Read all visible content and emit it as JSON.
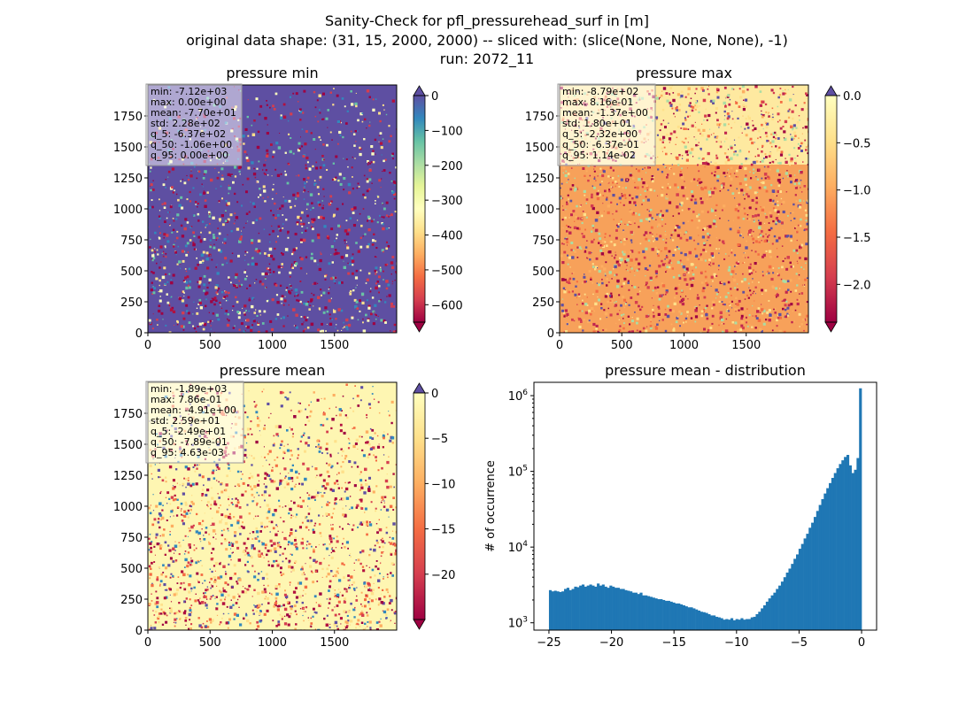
{
  "figure": {
    "title_lines": [
      "Sanity-Check for pfl_pressurehead_surf in [m]",
      "original data shape: (31, 15, 2000, 2000) -- sliced with: (slice(None, None, None), -1)",
      "run: 2072_11"
    ]
  },
  "panels": {
    "min": {
      "title": "pressure min",
      "stats": [
        "min: -7.12e+03",
        "max: 0.00e+00",
        "mean: -7.70e+01",
        "std: 2.28e+02",
        "q_5: -6.37e+02",
        "q_50: -1.06e+00",
        "q_95: 0.00e+00"
      ],
      "colorbar": {
        "range": [
          -650,
          0
        ],
        "ticks": [
          0,
          -100,
          -200,
          -300,
          -400,
          -500,
          -600
        ],
        "tick_labels": [
          "0",
          "−100",
          "−200",
          "−300",
          "−400",
          "−500",
          "−600"
        ]
      }
    },
    "max": {
      "title": "pressure max",
      "stats": [
        "min: -8.79e+02",
        "max: 8.16e-01",
        "mean: -1.37e+00",
        "std: 1.80e+01",
        "q_5: -2.32e+00",
        "q_50: -6.37e-01",
        "q_95: 1.14e-02"
      ],
      "colorbar": {
        "range": [
          -2.4,
          0
        ],
        "ticks": [
          0,
          -0.5,
          -1,
          -1.5,
          -2
        ],
        "tick_labels": [
          "0.0",
          "−0.5",
          "−1.0",
          "−1.5",
          "−2.0"
        ]
      }
    },
    "mean": {
      "title": "pressure mean",
      "stats": [
        "min: -1.89e+03",
        "max: 7.86e-01",
        "mean: -4.91e+00",
        "std: 2.59e+01",
        "q_5: -2.49e+01",
        "q_50: -7.89e-01",
        "q_95: 4.63e-03"
      ],
      "colorbar": {
        "range": [
          -25,
          0
        ],
        "ticks": [
          0,
          -5,
          -10,
          -15,
          -20
        ],
        "tick_labels": [
          "0",
          "−5",
          "−10",
          "−15",
          "−20"
        ]
      }
    }
  },
  "map_axes": {
    "x_ticks": [
      0,
      500,
      1000,
      1500
    ],
    "x_tick_labels": [
      "0",
      "500",
      "1000",
      "1500"
    ],
    "y_ticks": [
      0,
      250,
      500,
      750,
      1000,
      1250,
      1500,
      1750
    ],
    "y_tick_labels": [
      "0",
      "250",
      "500",
      "750",
      "1000",
      "1250",
      "1500",
      "1750"
    ],
    "xlim": [
      0,
      2000
    ],
    "ylim": [
      0,
      2000
    ]
  },
  "colormap": "Spectral",
  "colors": {
    "bar": "#1f77b4",
    "spectral_low": "#9e0142",
    "spectral_mid": "#ffffbf",
    "spectral_high": "#5e4fa2"
  },
  "chart_data": [
    {
      "type": "heatmap",
      "title": "pressure min",
      "xlim": [
        0,
        2000
      ],
      "ylim": [
        0,
        2000
      ],
      "colorbar_range": [
        -650,
        0
      ]
    },
    {
      "type": "heatmap",
      "title": "pressure max",
      "xlim": [
        0,
        2000
      ],
      "ylim": [
        0,
        2000
      ],
      "colorbar_range": [
        -2.4,
        0
      ]
    },
    {
      "type": "heatmap",
      "title": "pressure mean",
      "xlim": [
        0,
        2000
      ],
      "ylim": [
        0,
        2000
      ],
      "colorbar_range": [
        -25,
        0
      ]
    },
    {
      "type": "bar",
      "title": "pressure mean - distribution",
      "xlabel": "",
      "ylabel": "# of occurrence",
      "yscale": "log",
      "xlim": [
        -26.2,
        1.2
      ],
      "ylim": [
        800,
        1500000
      ],
      "x_ticks": [
        -25,
        -20,
        -15,
        -10,
        -5,
        0
      ],
      "x_tick_labels": [
        "−25",
        "−20",
        "−15",
        "−10",
        "−5",
        "0"
      ],
      "y_ticks": [
        1000,
        10000,
        100000,
        1000000
      ],
      "y_tick_labels": [
        "10^3",
        "10^4",
        "10^5",
        "10^6"
      ],
      "bin_range": [
        -25,
        0
      ],
      "counts": [
        2700,
        2600,
        2650,
        2600,
        2550,
        2600,
        2800,
        2900,
        2700,
        2800,
        3000,
        2950,
        3100,
        3200,
        3000,
        3100,
        3200,
        3100,
        3000,
        3300,
        3100,
        3200,
        3000,
        2900,
        3100,
        3000,
        2900,
        2900,
        2800,
        2800,
        2700,
        2650,
        2600,
        2500,
        2500,
        2400,
        2500,
        2300,
        2300,
        2250,
        2200,
        2150,
        2100,
        2050,
        2050,
        2000,
        1950,
        1950,
        1900,
        1850,
        1800,
        1800,
        1750,
        1700,
        1650,
        1600,
        1600,
        1550,
        1500,
        1450,
        1400,
        1380,
        1350,
        1300,
        1250,
        1250,
        1200,
        1180,
        1150,
        1100,
        1120,
        1100,
        1150,
        1080,
        1120,
        1100,
        1150,
        1100,
        1120,
        1120,
        1180,
        1200,
        1300,
        1400,
        1550,
        1700,
        1900,
        2100,
        2300,
        2500,
        2800,
        3100,
        3500,
        4000,
        4600,
        5200,
        6000,
        7000,
        8000,
        9500,
        11000,
        13000,
        15000,
        18000,
        21000,
        25000,
        30000,
        36000,
        43000,
        51000,
        60000,
        70000,
        82000,
        95000,
        110000,
        125000,
        140000,
        155000,
        165000,
        120000,
        95000,
        105000,
        150000,
        1250000
      ]
    }
  ]
}
